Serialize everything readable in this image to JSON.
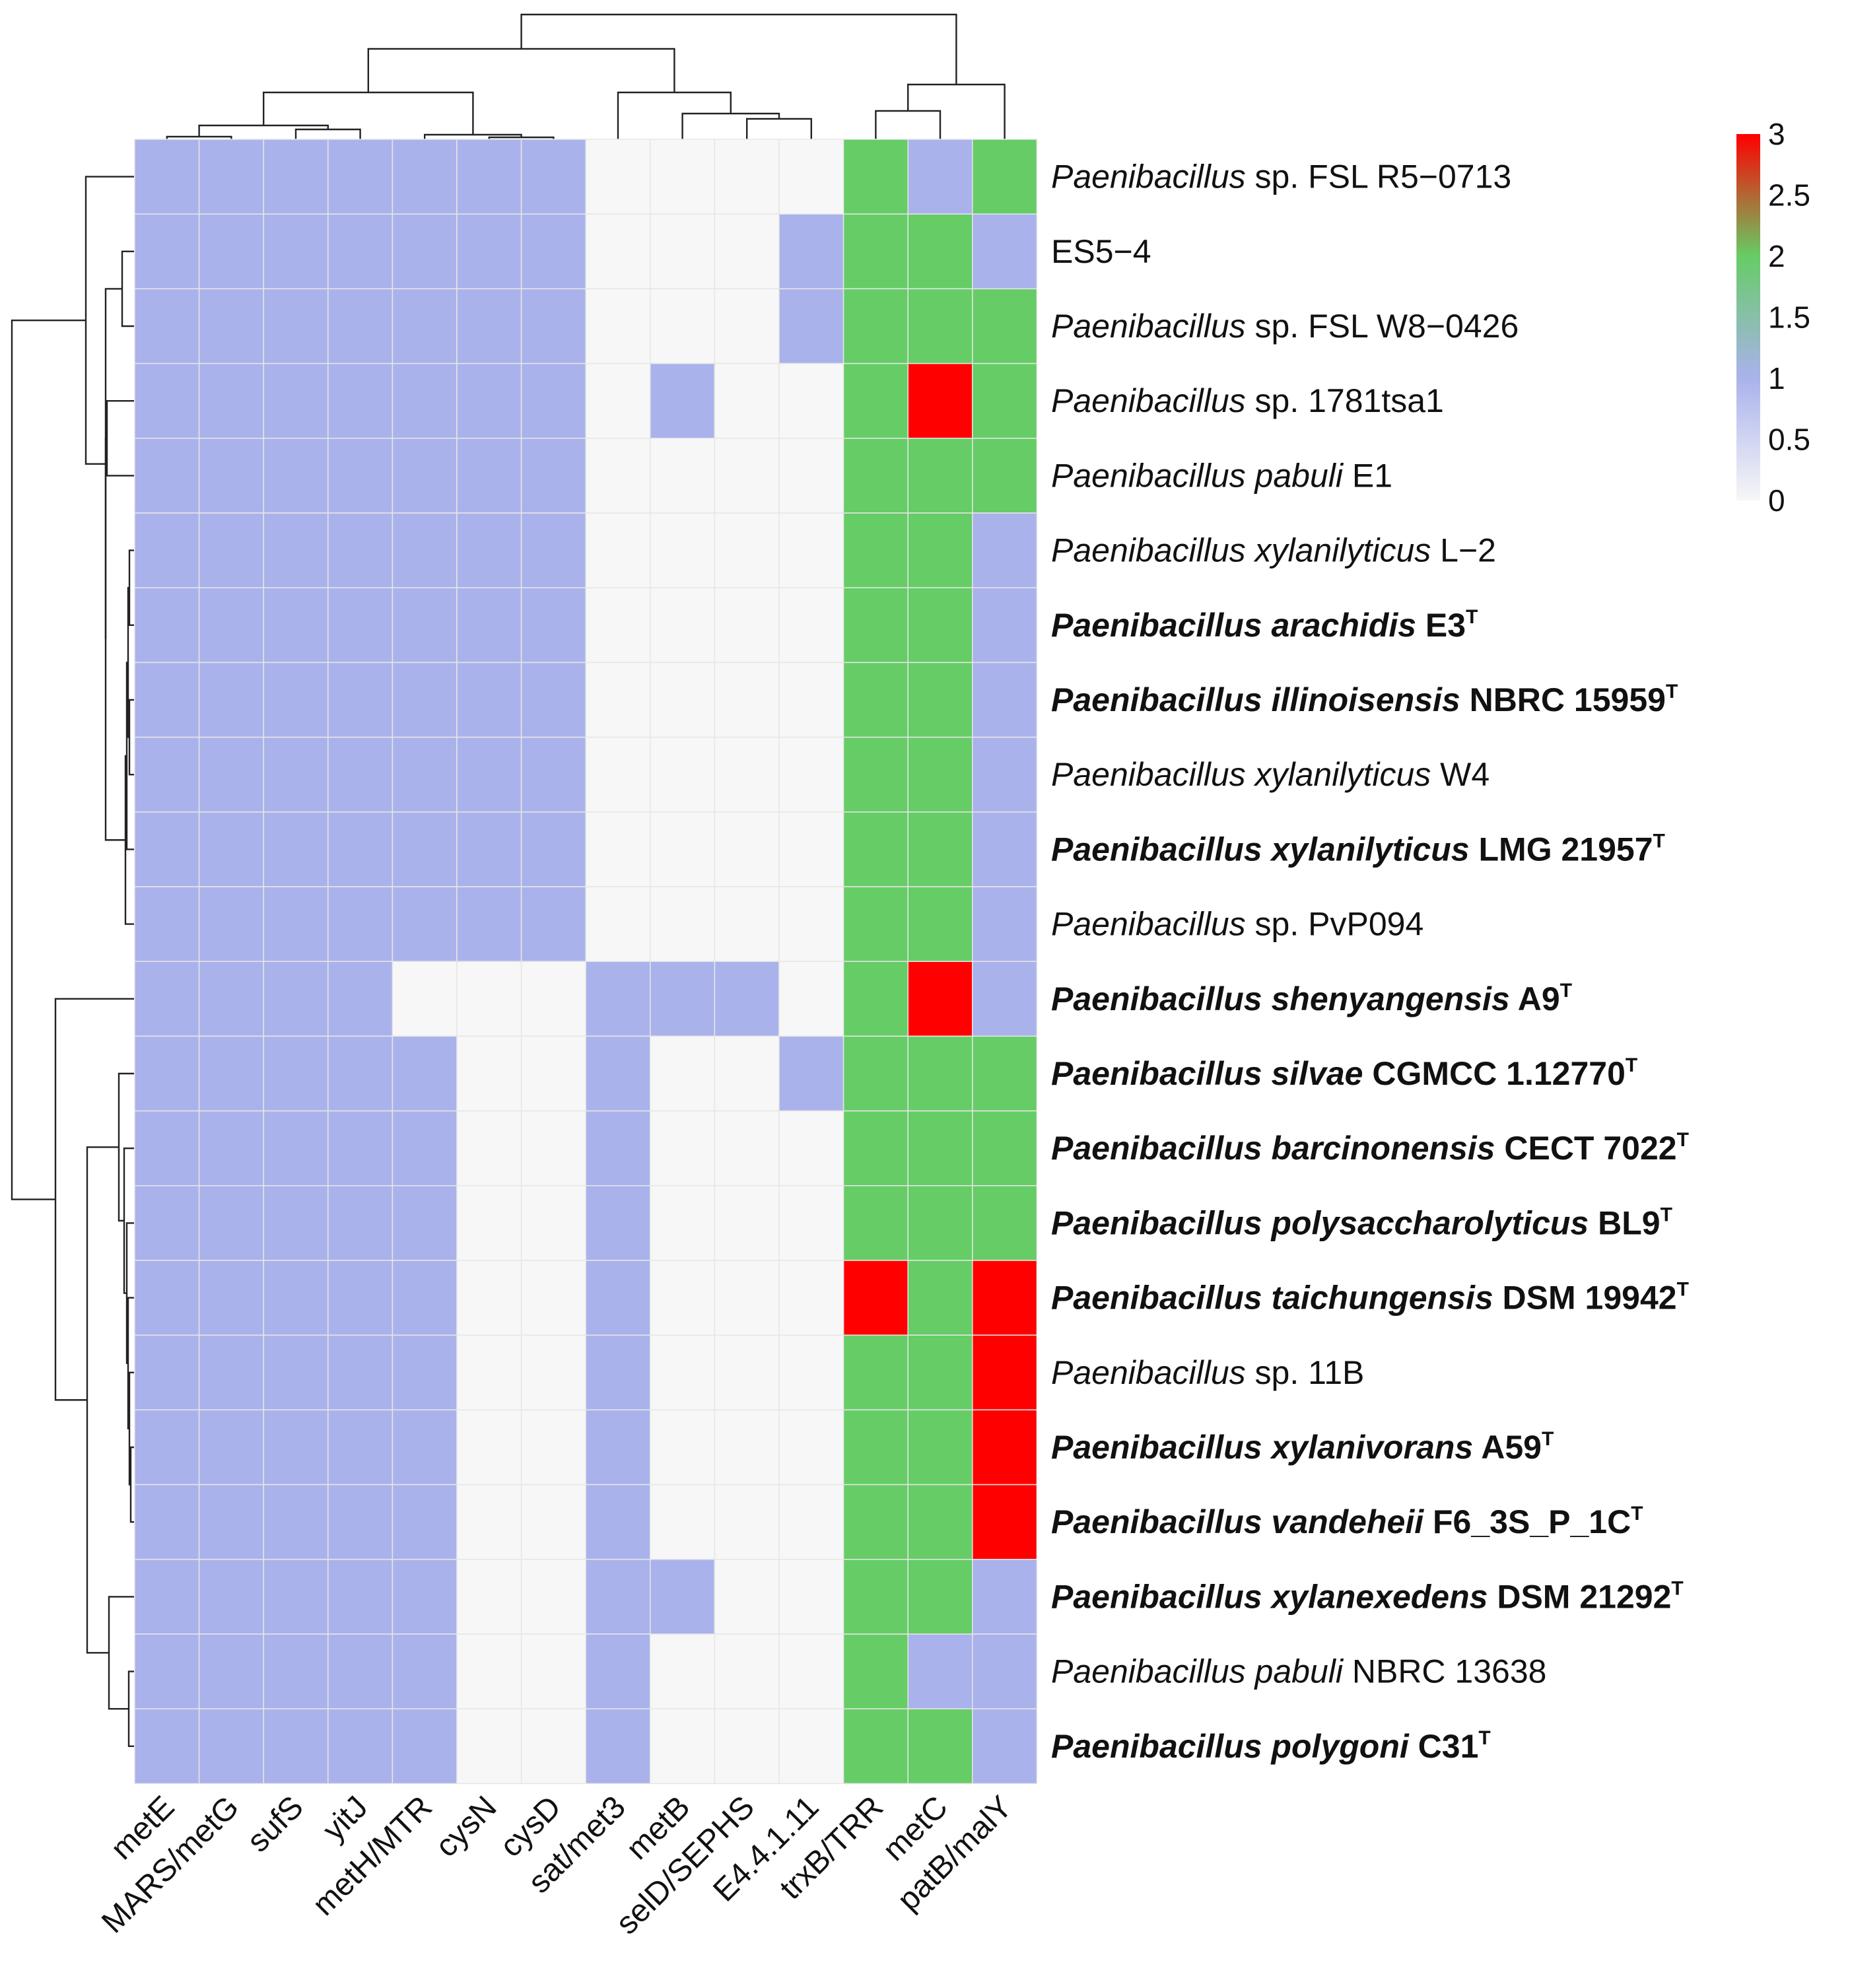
{
  "chart_data": {
    "type": "heatmap",
    "title": "",
    "columns": [
      "metE",
      "MARS/metG",
      "sufS",
      "yitJ",
      "metH/MTR",
      "cysN",
      "cysD",
      "sat/met3",
      "metB",
      "selD/SEPHS",
      "E4.4.1.11",
      "trxB/TRR",
      "metC",
      "patB/malY"
    ],
    "rows": [
      {
        "italic": "Paenibacillus",
        "rest": "sp. FSL R5−0713",
        "bold": false,
        "type_strain": false
      },
      {
        "italic": "",
        "rest": "ES5−4",
        "bold": false,
        "type_strain": false
      },
      {
        "italic": "Paenibacillus",
        "rest": "sp. FSL W8−0426",
        "bold": false,
        "type_strain": false
      },
      {
        "italic": "Paenibacillus",
        "rest": "sp. 1781tsa1",
        "bold": false,
        "type_strain": false
      },
      {
        "italic": "Paenibacillus pabuli",
        "rest": "E1",
        "bold": false,
        "type_strain": false
      },
      {
        "italic": "Paenibacillus xylanilyticus",
        "rest": "L−2",
        "bold": false,
        "type_strain": false
      },
      {
        "italic": "Paenibacillus arachidis",
        "rest": "E3",
        "bold": true,
        "type_strain": true
      },
      {
        "italic": "Paenibacillus illinoisensis",
        "rest": "NBRC 15959",
        "bold": true,
        "type_strain": true
      },
      {
        "italic": "Paenibacillus xylanilyticus",
        "rest": "W4",
        "bold": false,
        "type_strain": false
      },
      {
        "italic": "Paenibacillus xylanilyticus",
        "rest": "LMG 21957",
        "bold": true,
        "type_strain": true
      },
      {
        "italic": "Paenibacillus",
        "rest": "sp. PvP094",
        "bold": false,
        "type_strain": false
      },
      {
        "italic": "Paenibacillus shenyangensis",
        "rest": "A9",
        "bold": true,
        "type_strain": true
      },
      {
        "italic": "Paenibacillus silvae",
        "rest": "CGMCC 1.12770",
        "bold": true,
        "type_strain": true
      },
      {
        "italic": "Paenibacillus barcinonensis",
        "rest": "CECT 7022",
        "bold": true,
        "type_strain": true
      },
      {
        "italic": "Paenibacillus polysaccharolyticus",
        "rest": "BL9",
        "bold": true,
        "type_strain": true
      },
      {
        "italic": "Paenibacillus taichungensis",
        "rest": "DSM 19942",
        "bold": true,
        "type_strain": true
      },
      {
        "italic": "Paenibacillus",
        "rest": "sp. 11B",
        "bold": false,
        "type_strain": false
      },
      {
        "italic": "Paenibacillus xylanivorans",
        "rest": "A59",
        "bold": true,
        "type_strain": true
      },
      {
        "italic": "Paenibacillus vandeheii",
        "rest": "F6_3S_P_1C",
        "bold": true,
        "type_strain": true
      },
      {
        "italic": "Paenibacillus xylanexedens",
        "rest": "DSM 21292",
        "bold": true,
        "type_strain": true
      },
      {
        "italic": "Paenibacillus pabuli",
        "rest": "NBRC 13638",
        "bold": false,
        "type_strain": false
      },
      {
        "italic": "Paenibacillus polygoni",
        "rest": "C31",
        "bold": true,
        "type_strain": true
      }
    ],
    "values": [
      [
        1,
        1,
        1,
        1,
        1,
        1,
        1,
        0,
        0,
        0,
        0,
        2,
        1,
        2
      ],
      [
        1,
        1,
        1,
        1,
        1,
        1,
        1,
        0,
        0,
        0,
        1,
        2,
        2,
        1
      ],
      [
        1,
        1,
        1,
        1,
        1,
        1,
        1,
        0,
        0,
        0,
        1,
        2,
        2,
        2
      ],
      [
        1,
        1,
        1,
        1,
        1,
        1,
        1,
        0,
        1,
        0,
        0,
        2,
        3,
        2
      ],
      [
        1,
        1,
        1,
        1,
        1,
        1,
        1,
        0,
        0,
        0,
        0,
        2,
        2,
        2
      ],
      [
        1,
        1,
        1,
        1,
        1,
        1,
        1,
        0,
        0,
        0,
        0,
        2,
        2,
        1
      ],
      [
        1,
        1,
        1,
        1,
        1,
        1,
        1,
        0,
        0,
        0,
        0,
        2,
        2,
        1
      ],
      [
        1,
        1,
        1,
        1,
        1,
        1,
        1,
        0,
        0,
        0,
        0,
        2,
        2,
        1
      ],
      [
        1,
        1,
        1,
        1,
        1,
        1,
        1,
        0,
        0,
        0,
        0,
        2,
        2,
        1
      ],
      [
        1,
        1,
        1,
        1,
        1,
        1,
        1,
        0,
        0,
        0,
        0,
        2,
        2,
        1
      ],
      [
        1,
        1,
        1,
        1,
        1,
        1,
        1,
        0,
        0,
        0,
        0,
        2,
        2,
        1
      ],
      [
        1,
        1,
        1,
        1,
        0,
        0,
        0,
        1,
        1,
        1,
        0,
        2,
        3,
        1
      ],
      [
        1,
        1,
        1,
        1,
        1,
        0,
        0,
        1,
        0,
        0,
        1,
        2,
        2,
        2
      ],
      [
        1,
        1,
        1,
        1,
        1,
        0,
        0,
        1,
        0,
        0,
        0,
        2,
        2,
        2
      ],
      [
        1,
        1,
        1,
        1,
        1,
        0,
        0,
        1,
        0,
        0,
        0,
        2,
        2,
        2
      ],
      [
        1,
        1,
        1,
        1,
        1,
        0,
        0,
        1,
        0,
        0,
        0,
        3,
        2,
        3
      ],
      [
        1,
        1,
        1,
        1,
        1,
        0,
        0,
        1,
        0,
        0,
        0,
        2,
        2,
        3
      ],
      [
        1,
        1,
        1,
        1,
        1,
        0,
        0,
        1,
        0,
        0,
        0,
        2,
        2,
        3
      ],
      [
        1,
        1,
        1,
        1,
        1,
        0,
        0,
        1,
        0,
        0,
        0,
        2,
        2,
        3
      ],
      [
        1,
        1,
        1,
        1,
        1,
        0,
        0,
        1,
        1,
        0,
        0,
        2,
        2,
        1
      ],
      [
        1,
        1,
        1,
        1,
        1,
        0,
        0,
        1,
        0,
        0,
        0,
        2,
        1,
        1
      ],
      [
        1,
        1,
        1,
        1,
        1,
        0,
        0,
        1,
        0,
        0,
        0,
        2,
        2,
        1
      ]
    ],
    "type_marker": "T",
    "color_scale": {
      "min": 0,
      "max": 3,
      "stops": [
        {
          "value": 0,
          "color": "#f7f7f7"
        },
        {
          "value": 1,
          "color": "#aab2ec"
        },
        {
          "value": 2,
          "color": "#66cc66"
        },
        {
          "value": 3,
          "color": "#ff0000"
        }
      ],
      "ticks": [
        "0",
        "0.5",
        "1",
        "1.5",
        "2",
        "2.5",
        "3"
      ]
    },
    "dendrograms": [
      "columns (top)",
      "rows (left)"
    ],
    "grid": true
  }
}
